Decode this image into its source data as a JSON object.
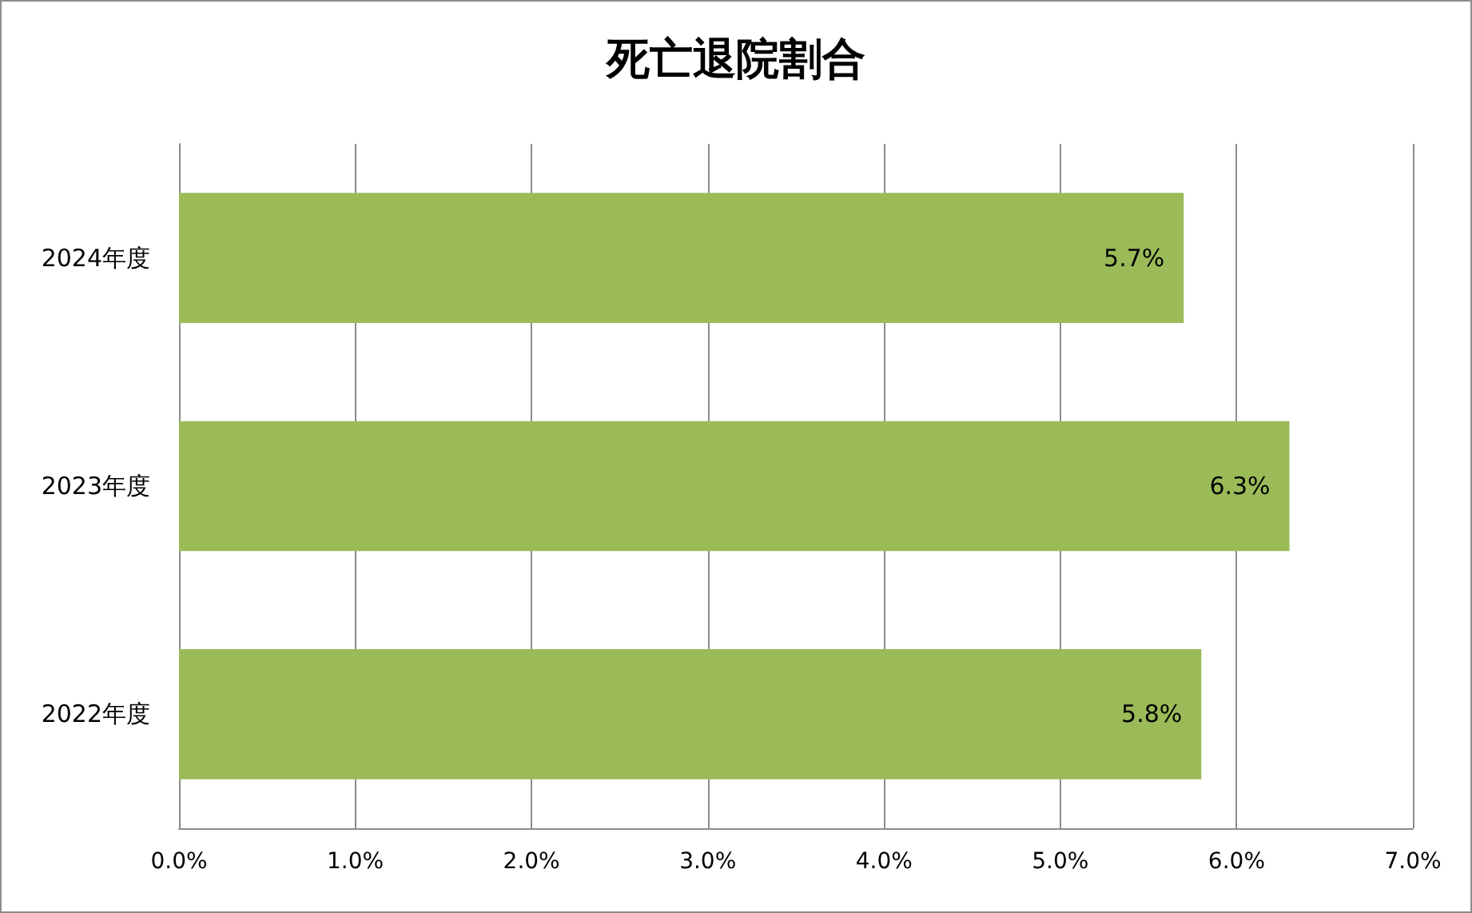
{
  "chart_data": {
    "type": "bar",
    "orientation": "horizontal",
    "title": "死亡退院割合",
    "categories": [
      "2024年度",
      "2023年度",
      "2022年度"
    ],
    "values": [
      5.7,
      6.3,
      5.8
    ],
    "color": "#9bbb59",
    "value_labels": [
      "5.7%",
      "6.3%",
      "5.8%"
    ],
    "xlim": [
      0,
      7
    ],
    "xticks": [
      {
        "value": 0,
        "label": "0.0%"
      },
      {
        "value": 1,
        "label": "1.0%"
      },
      {
        "value": 2,
        "label": "2.0%"
      },
      {
        "value": 3,
        "label": "3.0%"
      },
      {
        "value": 4,
        "label": "4.0%"
      },
      {
        "value": 5,
        "label": "5.0%"
      },
      {
        "value": 6,
        "label": "6.0%"
      },
      {
        "value": 7,
        "label": "7.0%"
      }
    ],
    "grid": "x"
  }
}
